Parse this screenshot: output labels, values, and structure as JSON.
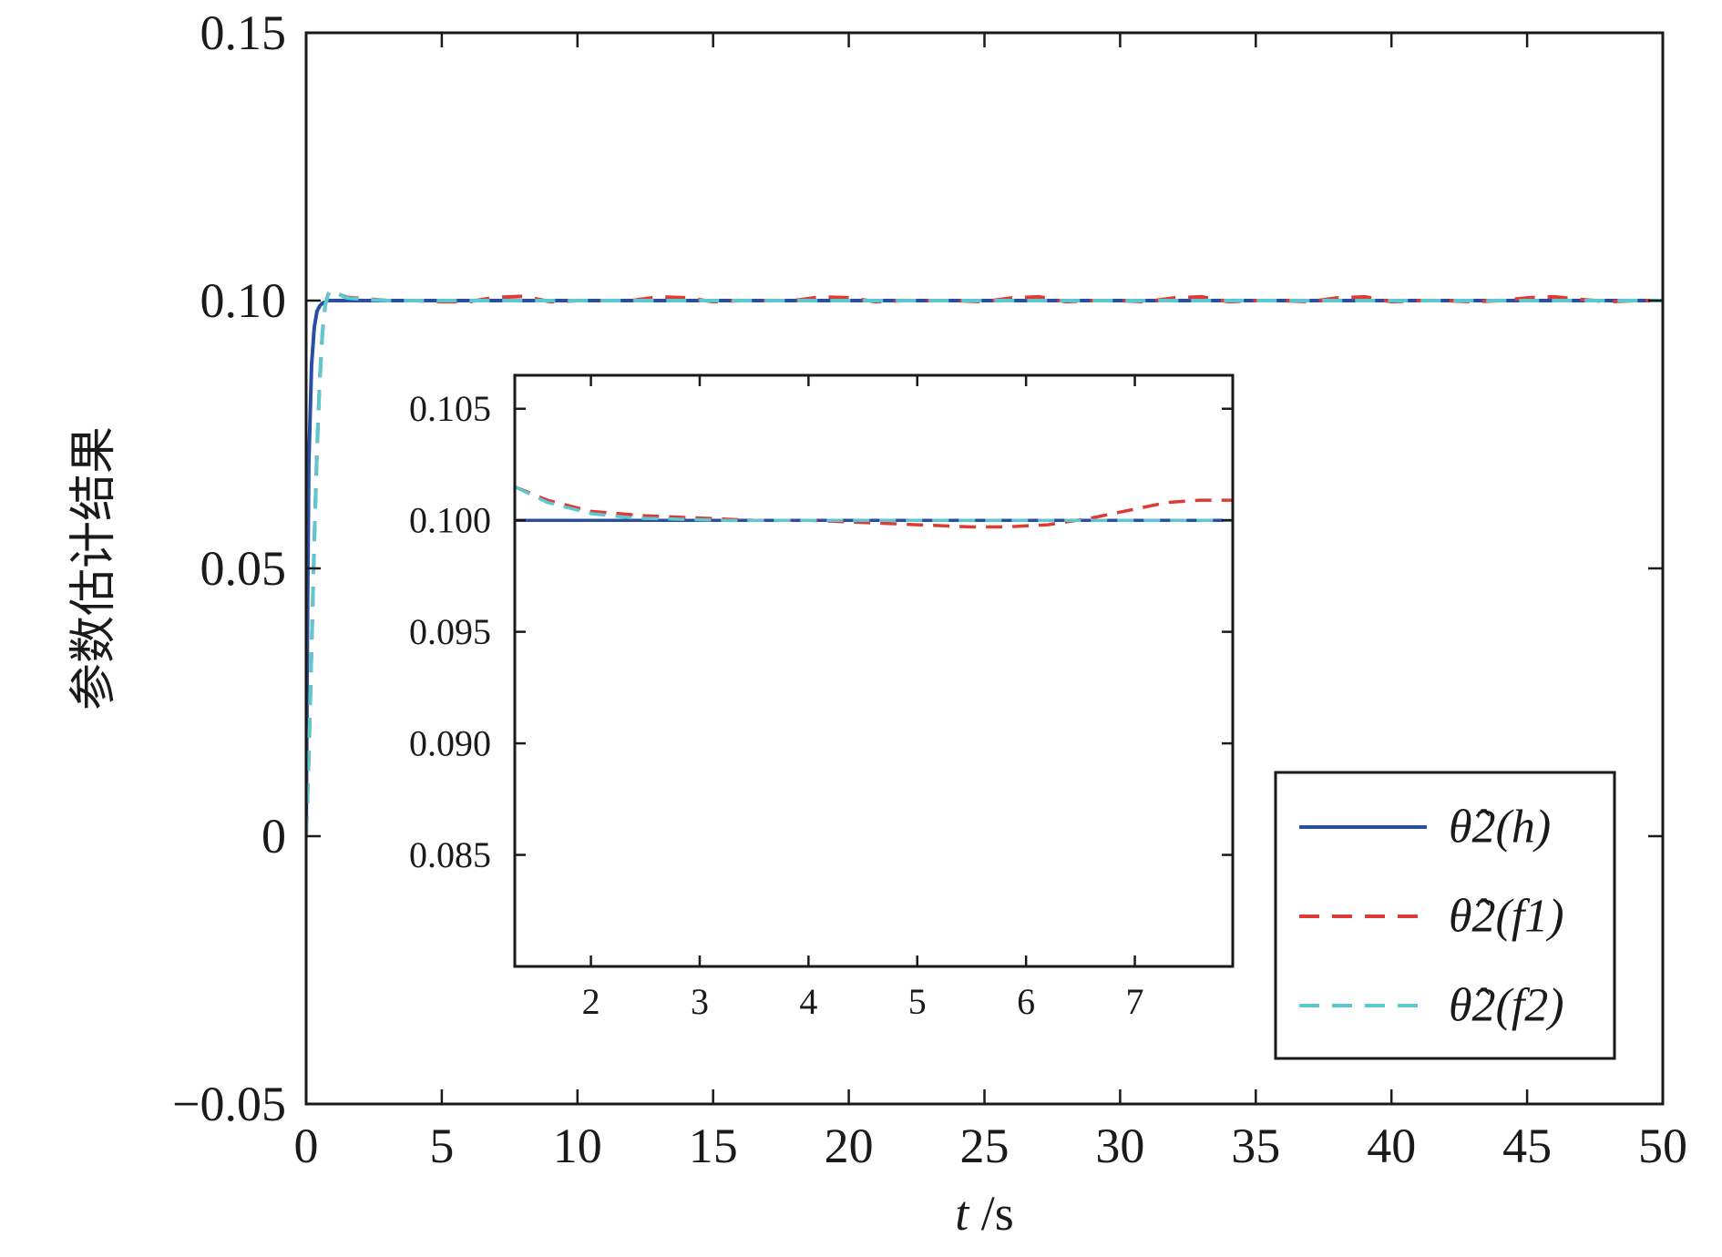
{
  "chart_data": [
    {
      "id": "main",
      "type": "line",
      "xlabel": "t /s",
      "ylabel": "参数估计结果",
      "xlim": [
        0,
        50
      ],
      "ylim": [
        -0.05,
        0.15
      ],
      "xticks": [
        0,
        5,
        10,
        15,
        20,
        25,
        30,
        35,
        40,
        45,
        50
      ],
      "xtick_labels": [
        "0",
        "5",
        "10",
        "15",
        "20",
        "25",
        "30",
        "35",
        "40",
        "45",
        "50"
      ],
      "yticks": [
        -0.05,
        0,
        0.05,
        0.1,
        0.15
      ],
      "ytick_labels": [
        "−0.05",
        "0",
        "0.05",
        "0.10",
        "0.15"
      ],
      "grid": false,
      "legend_position": "bottom-right",
      "series": [
        {
          "name": "θ̂2(h)",
          "color": "#2b4fa0",
          "style": "solid",
          "x": [
            0,
            0.05,
            0.1,
            0.2,
            0.3,
            0.4,
            0.5,
            0.6,
            0.8,
            1.0,
            2,
            5,
            10,
            20,
            30,
            40,
            50
          ],
          "y": [
            0,
            0.04,
            0.07,
            0.088,
            0.095,
            0.098,
            0.099,
            0.0995,
            0.1,
            0.1,
            0.1,
            0.1,
            0.1,
            0.1,
            0.1,
            0.1,
            0.1
          ]
        },
        {
          "name": "θ̂2(f1)",
          "color": "#e03a36",
          "style": "dashed",
          "x": [
            0,
            0.1,
            0.2,
            0.3,
            0.4,
            0.5,
            0.6,
            0.7,
            0.8,
            0.9,
            1.0,
            1.2,
            1.5,
            2,
            2.5,
            3,
            4,
            5,
            6,
            7,
            8,
            9,
            10,
            11,
            12,
            13,
            14,
            15,
            16,
            17,
            18,
            19,
            20,
            21,
            22,
            23,
            24,
            25,
            26,
            27,
            28,
            29,
            30,
            31,
            32,
            33,
            34,
            35,
            36,
            37,
            38,
            39,
            40,
            41,
            42,
            43,
            44,
            45,
            46,
            47,
            48,
            49,
            50
          ],
          "y": [
            0,
            0.015,
            0.035,
            0.055,
            0.072,
            0.085,
            0.094,
            0.099,
            0.101,
            0.102,
            0.1018,
            0.1012,
            0.1006,
            0.1004,
            0.1002,
            0.1,
            0.1,
            0.0998,
            0.0998,
            0.1006,
            0.1008,
            0.0998,
            0.1,
            0.1,
            0.1,
            0.1007,
            0.1005,
            0.0998,
            0.1,
            0.1,
            0.1,
            0.1007,
            0.1005,
            0.0998,
            0.1,
            0.1,
            0.1,
            0.0998,
            0.1005,
            0.1007,
            0.0998,
            0.1,
            0.1,
            0.0998,
            0.1005,
            0.1007,
            0.0998,
            0.1,
            0.1,
            0.0998,
            0.1005,
            0.1007,
            0.0998,
            0.1,
            0.1,
            0.0998,
            0.1,
            0.1005,
            0.1007,
            0.1002,
            0.0998,
            0.1,
            0.1
          ]
        },
        {
          "name": "θ̂2(f2)",
          "color": "#5cc8d0",
          "style": "dashed",
          "x": [
            0,
            0.1,
            0.2,
            0.3,
            0.4,
            0.5,
            0.6,
            0.7,
            0.8,
            0.9,
            1.0,
            1.2,
            1.5,
            2,
            2.5,
            3,
            5,
            10,
            20,
            30,
            40,
            50
          ],
          "y": [
            0,
            0.015,
            0.035,
            0.055,
            0.072,
            0.085,
            0.094,
            0.099,
            0.101,
            0.102,
            0.1018,
            0.1012,
            0.1005,
            0.1003,
            0.1001,
            0.1,
            0.1,
            0.1,
            0.1,
            0.1,
            0.1,
            0.1
          ]
        }
      ]
    },
    {
      "id": "inset",
      "type": "line",
      "xlim": [
        1.3,
        7.9
      ],
      "ylim": [
        0.08,
        0.1065
      ],
      "xticks": [
        2,
        3,
        4,
        5,
        6,
        7
      ],
      "xtick_labels": [
        "2",
        "3",
        "4",
        "5",
        "6",
        "7"
      ],
      "yticks": [
        0.085,
        0.09,
        0.095,
        0.1,
        0.105
      ],
      "ytick_labels": [
        "0.085",
        "0.090",
        "0.095",
        "0.100",
        "0.105"
      ],
      "grid": false,
      "series": [
        {
          "name": "θ̂2(h)",
          "color": "#2b4fa0",
          "style": "solid",
          "x": [
            1.3,
            7.9
          ],
          "y": [
            0.1,
            0.1
          ]
        },
        {
          "name": "θ̂2(f1)",
          "color": "#e03a36",
          "style": "dashed",
          "x": [
            1.3,
            1.6,
            2.0,
            2.5,
            3.0,
            3.5,
            4.0,
            4.5,
            5.0,
            5.5,
            5.8,
            6.2,
            6.6,
            7.0,
            7.3,
            7.6,
            7.9
          ],
          "y": [
            0.1015,
            0.1009,
            0.1004,
            0.1002,
            0.1001,
            0.1,
            0.1,
            0.0999,
            0.0998,
            0.0997,
            0.0997,
            0.0998,
            0.1001,
            0.1005,
            0.1008,
            0.1009,
            0.1009
          ]
        },
        {
          "name": "θ̂2(f2)",
          "color": "#5cc8d0",
          "style": "dashed",
          "x": [
            1.3,
            1.6,
            2.0,
            2.4,
            2.8,
            3.2,
            4.0,
            5.0,
            6.0,
            7.0,
            7.9
          ],
          "y": [
            0.1015,
            0.1008,
            0.1003,
            0.1001,
            0.10005,
            0.1,
            0.1,
            0.1,
            0.1,
            0.1,
            0.1
          ]
        }
      ]
    }
  ]
}
